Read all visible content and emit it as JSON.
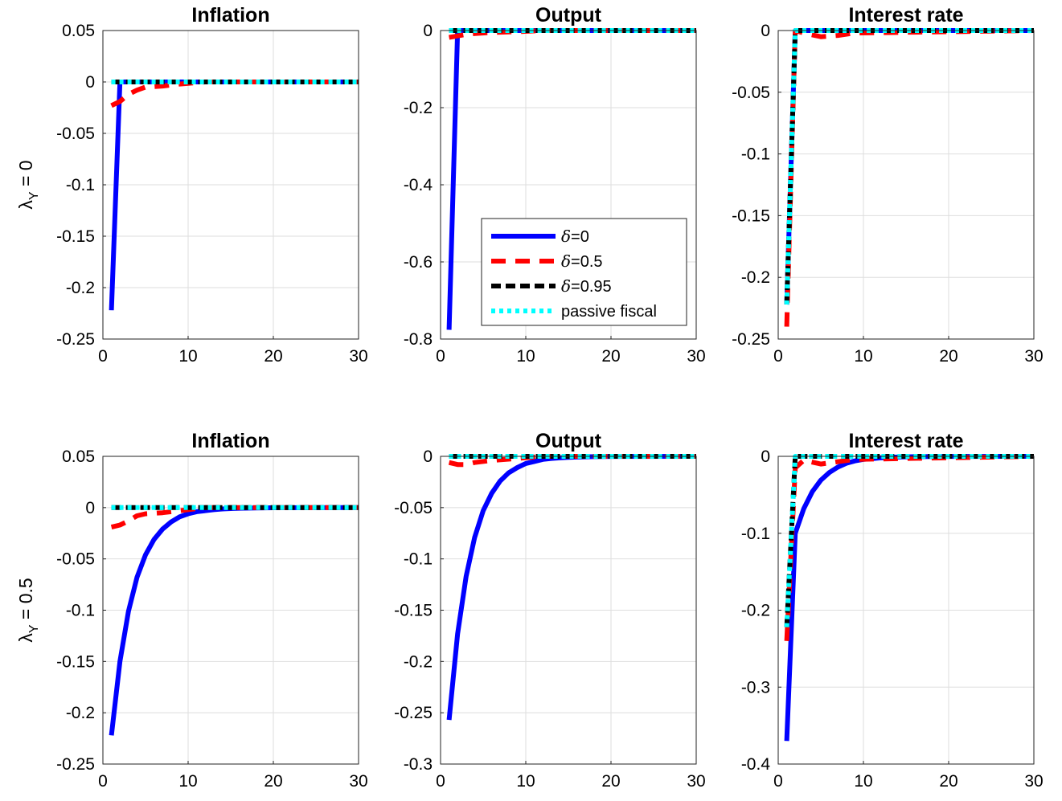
{
  "colors": {
    "delta_0": "#0000ff",
    "delta_05": "#ff0000",
    "delta_095": "#000000",
    "passive": "#00ffff",
    "grid": "#dedede"
  },
  "row_labels": [
    {
      "symbol": "λ",
      "subscript": "Y",
      "rest": " = 0"
    },
    {
      "symbol": "λ",
      "subscript": "Y",
      "rest": " = 0.5"
    }
  ],
  "legend": {
    "placement": "inside-lower-center of top Output panel",
    "entries": [
      {
        "symbol": "δ",
        "text": "=0",
        "style": "solid",
        "color": "#0000ff"
      },
      {
        "symbol": "δ",
        "text": "=0.5",
        "style": "dashed",
        "color": "#ff0000"
      },
      {
        "symbol": "δ",
        "text": "=0.95",
        "style": "dashed",
        "color": "#000000"
      },
      {
        "symbol": "",
        "text": "passive fiscal",
        "style": "dotted",
        "color": "#00ffff"
      }
    ]
  },
  "chart_data": [
    {
      "type": "line",
      "title": "Inflation",
      "row": 0,
      "col": 0,
      "grid": true,
      "xlim": [
        0,
        30
      ],
      "ylim": [
        -0.25,
        0.05
      ],
      "xticks": [
        0,
        10,
        20,
        30
      ],
      "xtick_labels": [
        "0",
        "10",
        "20",
        "30"
      ],
      "yticks": [
        0.05,
        0,
        -0.05,
        -0.1,
        -0.15,
        -0.2,
        -0.25
      ],
      "ytick_labels": [
        "0.05",
        "0",
        "-0.05",
        "-0.1",
        "-0.15",
        "-0.2",
        "-0.25"
      ],
      "series": [
        {
          "name": "δ=0",
          "x": [
            1,
            2,
            30
          ],
          "y": [
            -0.222,
            0,
            0
          ]
        },
        {
          "name": "δ=0.5",
          "x": [
            1,
            2,
            3,
            4,
            5,
            7,
            9,
            12,
            30
          ],
          "y": [
            -0.023,
            -0.019,
            -0.012,
            -0.008,
            -0.005,
            -0.004,
            -0.002,
            0,
            0
          ]
        },
        {
          "name": "δ=0.95",
          "x": [
            1,
            30
          ],
          "y": [
            0,
            0
          ]
        },
        {
          "name": "passive fiscal",
          "x": [
            1,
            30
          ],
          "y": [
            0,
            0
          ]
        }
      ]
    },
    {
      "type": "line",
      "title": "Output",
      "row": 0,
      "col": 1,
      "grid": true,
      "xlim": [
        0,
        30
      ],
      "ylim": [
        -0.8,
        0
      ],
      "xticks": [
        0,
        10,
        20,
        30
      ],
      "xtick_labels": [
        "0",
        "10",
        "20",
        "30"
      ],
      "yticks": [
        0,
        -0.2,
        -0.4,
        -0.6,
        -0.8
      ],
      "ytick_labels": [
        "0",
        "-0.2",
        "-0.4",
        "-0.6",
        "-0.8"
      ],
      "series": [
        {
          "name": "δ=0",
          "x": [
            1,
            2,
            30
          ],
          "y": [
            -0.776,
            0,
            0
          ]
        },
        {
          "name": "δ=0.5",
          "x": [
            1,
            2,
            3,
            4,
            6,
            9,
            12,
            30
          ],
          "y": [
            -0.018,
            -0.014,
            -0.01,
            -0.008,
            -0.005,
            -0.003,
            0,
            0
          ]
        },
        {
          "name": "δ=0.95",
          "x": [
            1,
            30
          ],
          "y": [
            0,
            0
          ]
        },
        {
          "name": "passive fiscal",
          "x": [
            1,
            30
          ],
          "y": [
            0,
            0
          ]
        }
      ]
    },
    {
      "type": "line",
      "title": "Interest rate",
      "row": 0,
      "col": 2,
      "grid": true,
      "xlim": [
        0,
        30
      ],
      "ylim": [
        -0.25,
        0
      ],
      "xticks": [
        0,
        10,
        20,
        30
      ],
      "xtick_labels": [
        "0",
        "10",
        "20",
        "30"
      ],
      "yticks": [
        0,
        -0.05,
        -0.1,
        -0.15,
        -0.2,
        -0.25
      ],
      "ytick_labels": [
        "0",
        "-0.05",
        "-0.1",
        "-0.15",
        "-0.2",
        "-0.25"
      ],
      "series": [
        {
          "name": "δ=0",
          "x": [
            1,
            2,
            30
          ],
          "y": [
            -0.222,
            0,
            0
          ]
        },
        {
          "name": "δ=0.5",
          "x": [
            1,
            2,
            3,
            5,
            7,
            9,
            30
          ],
          "y": [
            -0.24,
            0,
            -0.002,
            -0.005,
            -0.004,
            -0.002,
            0
          ]
        },
        {
          "name": "δ=0.95",
          "x": [
            1,
            2,
            30
          ],
          "y": [
            -0.222,
            0,
            0
          ]
        },
        {
          "name": "passive fiscal",
          "x": [
            1,
            2,
            30
          ],
          "y": [
            -0.222,
            0,
            0
          ]
        }
      ]
    },
    {
      "type": "line",
      "title": "Inflation",
      "row": 1,
      "col": 0,
      "grid": true,
      "xlim": [
        0,
        30
      ],
      "ylim": [
        -0.25,
        0.05
      ],
      "xticks": [
        0,
        10,
        20,
        30
      ],
      "xtick_labels": [
        "0",
        "10",
        "20",
        "30"
      ],
      "yticks": [
        0.05,
        0,
        -0.05,
        -0.1,
        -0.15,
        -0.2,
        -0.25
      ],
      "ytick_labels": [
        "0.05",
        "0",
        "-0.05",
        "-0.1",
        "-0.15",
        "-0.2",
        "-0.25"
      ],
      "series": [
        {
          "name": "δ=0",
          "x": [
            1,
            2,
            3,
            4,
            5,
            6,
            7,
            8,
            9,
            10,
            11,
            12,
            13,
            14,
            15,
            16,
            18,
            20,
            30
          ],
          "y": [
            -0.222,
            -0.15,
            -0.101,
            -0.068,
            -0.046,
            -0.031,
            -0.021,
            -0.014,
            -0.009,
            -0.006,
            -0.004,
            -0.003,
            -0.002,
            -0.0013,
            -0.0009,
            -0.0006,
            -0.0003,
            -0.0001,
            0
          ]
        },
        {
          "name": "δ=0.5",
          "x": [
            1,
            2,
            3,
            4,
            5,
            7,
            9,
            12,
            30
          ],
          "y": [
            -0.019,
            -0.017,
            -0.013,
            -0.008,
            -0.006,
            -0.005,
            -0.003,
            0,
            0
          ]
        },
        {
          "name": "δ=0.95",
          "x": [
            1,
            30
          ],
          "y": [
            0,
            0
          ]
        },
        {
          "name": "passive fiscal",
          "x": [
            1,
            30
          ],
          "y": [
            0,
            0
          ]
        }
      ]
    },
    {
      "type": "line",
      "title": "Output",
      "row": 1,
      "col": 1,
      "grid": true,
      "xlim": [
        0,
        30
      ],
      "ylim": [
        -0.3,
        0
      ],
      "xticks": [
        0,
        10,
        20,
        30
      ],
      "xtick_labels": [
        "0",
        "10",
        "20",
        "30"
      ],
      "yticks": [
        0,
        -0.05,
        -0.1,
        -0.15,
        -0.2,
        -0.25,
        -0.3
      ],
      "ytick_labels": [
        "0",
        "-0.05",
        "-0.1",
        "-0.15",
        "-0.2",
        "-0.25",
        "-0.3"
      ],
      "series": [
        {
          "name": "δ=0",
          "x": [
            1,
            2,
            3,
            4,
            5,
            6,
            7,
            8,
            9,
            10,
            11,
            12,
            13,
            14,
            15,
            16,
            18,
            20,
            30
          ],
          "y": [
            -0.257,
            -0.173,
            -0.117,
            -0.079,
            -0.053,
            -0.036,
            -0.024,
            -0.016,
            -0.011,
            -0.007,
            -0.005,
            -0.003,
            -0.002,
            -0.0015,
            -0.001,
            -0.0007,
            -0.0003,
            -0.0001,
            0
          ]
        },
        {
          "name": "δ=0.5",
          "x": [
            1,
            2,
            3,
            4,
            6,
            9,
            12,
            30
          ],
          "y": [
            -0.006,
            -0.008,
            -0.008,
            -0.006,
            -0.004,
            -0.002,
            0,
            0
          ]
        },
        {
          "name": "δ=0.95",
          "x": [
            1,
            30
          ],
          "y": [
            0,
            0
          ]
        },
        {
          "name": "passive fiscal",
          "x": [
            1,
            30
          ],
          "y": [
            0,
            0
          ]
        }
      ]
    },
    {
      "type": "line",
      "title": "Interest rate",
      "row": 1,
      "col": 2,
      "grid": true,
      "xlim": [
        0,
        30
      ],
      "ylim": [
        -0.4,
        0
      ],
      "xticks": [
        0,
        10,
        20,
        30
      ],
      "xtick_labels": [
        "0",
        "10",
        "20",
        "30"
      ],
      "yticks": [
        0,
        -0.1,
        -0.2,
        -0.3,
        -0.4
      ],
      "ytick_labels": [
        "0",
        "-0.1",
        "-0.2",
        "-0.3",
        "-0.4"
      ],
      "series": [
        {
          "name": "δ=0",
          "x": [
            1,
            2,
            3,
            4,
            5,
            6,
            7,
            8,
            9,
            10,
            11,
            12,
            13,
            14,
            15,
            16,
            18,
            20,
            30
          ],
          "y": [
            -0.37,
            -0.1,
            -0.068,
            -0.046,
            -0.031,
            -0.021,
            -0.014,
            -0.009,
            -0.006,
            -0.004,
            -0.003,
            -0.002,
            -0.0013,
            -0.0009,
            -0.0006,
            -0.0004,
            -0.0002,
            -0.0001,
            0
          ]
        },
        {
          "name": "δ=0.5",
          "x": [
            1,
            2,
            3,
            5,
            7,
            9,
            30
          ],
          "y": [
            -0.24,
            -0.015,
            -0.005,
            -0.01,
            -0.007,
            -0.004,
            0
          ]
        },
        {
          "name": "δ=0.95",
          "x": [
            1,
            2,
            30
          ],
          "y": [
            -0.222,
            0,
            0
          ]
        },
        {
          "name": "passive fiscal",
          "x": [
            1,
            2,
            30
          ],
          "y": [
            -0.222,
            0,
            0
          ]
        }
      ]
    }
  ]
}
